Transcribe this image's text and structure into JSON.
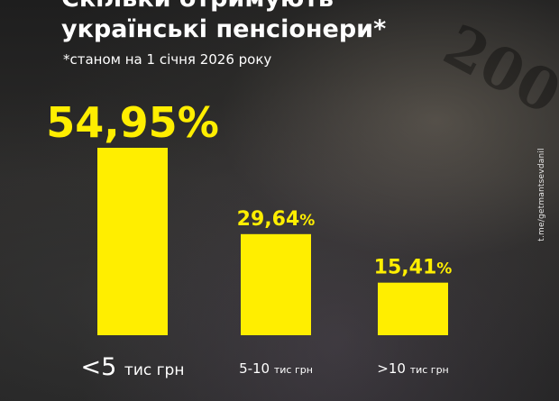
{
  "title_lines": [
    "Скільки отримують",
    "українські пенсіонери*"
  ],
  "subtitle": "*станом на 1 січня 2026 року",
  "watermark": "t.me/getmantsevdanil",
  "colors": {
    "bar": "#FFEE00",
    "text": "#FFFFFF",
    "value_text": "#FFEE00"
  },
  "chart_data": {
    "type": "bar",
    "title": "Скільки отримують українські пенсіонери*",
    "subtitle": "*станом на 1 січня 2026 року",
    "categories": [
      "<5 тис грн",
      "5-10 тис грн",
      ">10 тис грн"
    ],
    "category_parts": [
      {
        "main": "<5",
        "unit": "тис грн"
      },
      {
        "main": "5-10",
        "unit": "тис грн"
      },
      {
        "main": ">10",
        "unit": "тис грн"
      }
    ],
    "values": [
      54.95,
      29.64,
      15.41
    ],
    "value_labels": [
      {
        "main": "54,95",
        "pct": "%"
      },
      {
        "main": "29,64",
        "pct": "%"
      },
      {
        "main": "15,41",
        "pct": "%"
      }
    ],
    "value_unit": "%",
    "xlabel": "",
    "ylabel": "",
    "ylim": [
      0,
      54.95
    ],
    "grid": false,
    "legend": "none"
  }
}
